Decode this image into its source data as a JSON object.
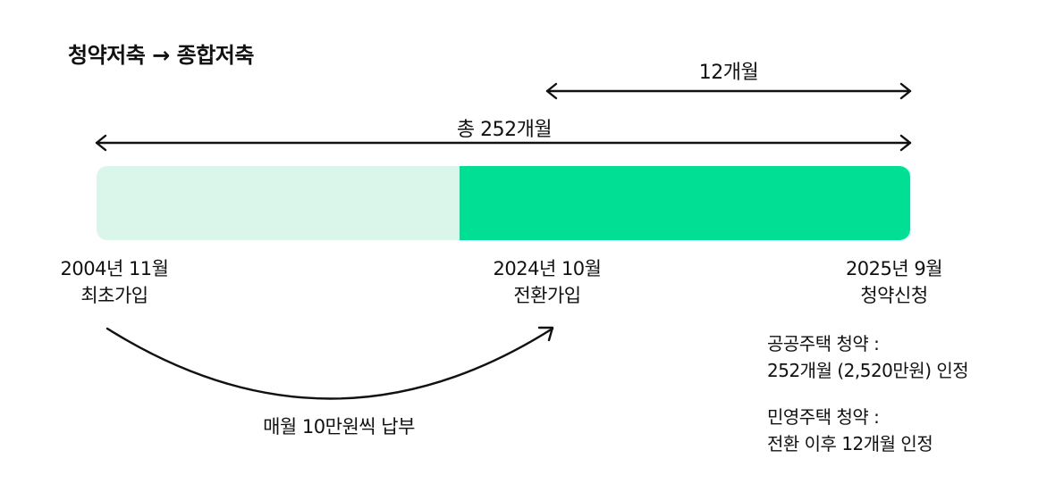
{
  "title": "청약저축 → 종합저축",
  "spans": {
    "total": {
      "label": "총 252개월",
      "months": 252
    },
    "recent": {
      "label": "12개월",
      "months": 12
    }
  },
  "bar": {
    "converted_fraction": 0.446,
    "colors": {
      "before": "#daf5ea",
      "after": "#00df94"
    }
  },
  "milestones": [
    {
      "date": "2004년 11월",
      "event": "최초가입"
    },
    {
      "date": "2024년 10월",
      "event": "전환가입"
    },
    {
      "date": "2025년 9월",
      "event": "청약신청"
    }
  ],
  "notes": {
    "public": {
      "heading": "공공주택 청약 :",
      "detail": "252개월 (2,520만원) 인정"
    },
    "private": {
      "heading": "민영주택 청약 :",
      "detail": "전환 이후 12개월 인정"
    }
  },
  "payment": "매월 10만원씩 납부"
}
